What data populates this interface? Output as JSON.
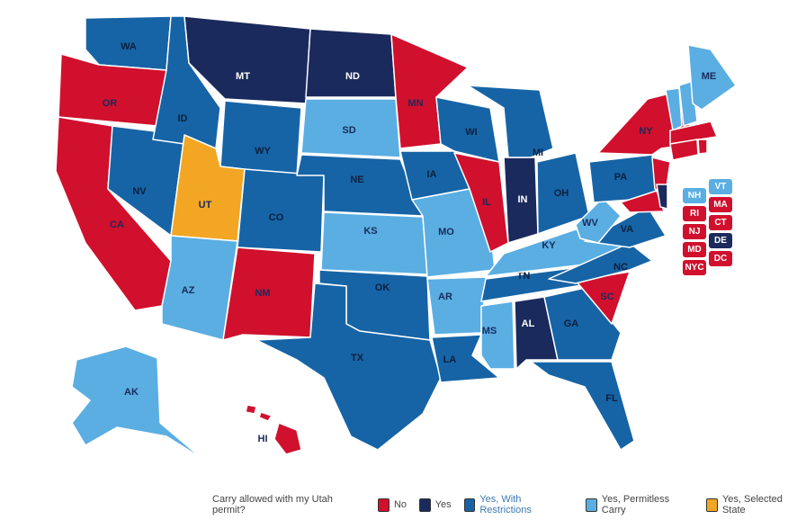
{
  "colors": {
    "no": "#d0102d",
    "yes": "#1b2a5c",
    "restrict": "#1664a6",
    "permitless": "#5aaee2",
    "selected": "#f2a623"
  },
  "states": {
    "WA": {
      "label": "WA",
      "cat": "restrict"
    },
    "OR": {
      "label": "OR",
      "cat": "no"
    },
    "CA": {
      "label": "CA",
      "cat": "no"
    },
    "NV": {
      "label": "NV",
      "cat": "restrict"
    },
    "ID": {
      "label": "ID",
      "cat": "restrict"
    },
    "MT": {
      "label": "MT",
      "cat": "yes"
    },
    "WY": {
      "label": "WY",
      "cat": "restrict"
    },
    "UT": {
      "label": "UT",
      "cat": "selected"
    },
    "AZ": {
      "label": "AZ",
      "cat": "permitless"
    },
    "CO": {
      "label": "CO",
      "cat": "restrict"
    },
    "NM": {
      "label": "NM",
      "cat": "no"
    },
    "ND": {
      "label": "ND",
      "cat": "yes"
    },
    "SD": {
      "label": "SD",
      "cat": "permitless"
    },
    "NE": {
      "label": "NE",
      "cat": "restrict"
    },
    "KS": {
      "label": "KS",
      "cat": "permitless"
    },
    "OK": {
      "label": "OK",
      "cat": "restrict"
    },
    "TX": {
      "label": "TX",
      "cat": "restrict"
    },
    "MN": {
      "label": "MN",
      "cat": "no"
    },
    "IA": {
      "label": "IA",
      "cat": "restrict"
    },
    "MO": {
      "label": "MO",
      "cat": "permitless"
    },
    "AR": {
      "label": "AR",
      "cat": "permitless"
    },
    "LA": {
      "label": "LA",
      "cat": "restrict"
    },
    "WI": {
      "label": "WI",
      "cat": "restrict"
    },
    "IL": {
      "label": "IL",
      "cat": "no"
    },
    "MS": {
      "label": "MS",
      "cat": "permitless"
    },
    "AL": {
      "label": "AL",
      "cat": "yes"
    },
    "TN": {
      "label": "TN",
      "cat": "restrict"
    },
    "KY": {
      "label": "KY",
      "cat": "permitless"
    },
    "IN": {
      "label": "IN",
      "cat": "yes"
    },
    "OH": {
      "label": "OH",
      "cat": "restrict"
    },
    "MI": {
      "label": "MI",
      "cat": "restrict"
    },
    "GA": {
      "label": "GA",
      "cat": "restrict"
    },
    "FL": {
      "label": "FL",
      "cat": "restrict"
    },
    "SC": {
      "label": "SC",
      "cat": "no"
    },
    "NC": {
      "label": "NC",
      "cat": "restrict"
    },
    "VA": {
      "label": "VA",
      "cat": "restrict"
    },
    "WV": {
      "label": "WV",
      "cat": "permitless"
    },
    "PA": {
      "label": "PA",
      "cat": "restrict"
    },
    "NY": {
      "label": "NY",
      "cat": "no"
    },
    "ME": {
      "label": "ME",
      "cat": "permitless"
    },
    "AK": {
      "label": "AK",
      "cat": "permitless"
    },
    "HI": {
      "label": "HI",
      "cat": "no"
    }
  },
  "badges": [
    {
      "label": "NH",
      "cat": "permitless"
    },
    {
      "label": "VT",
      "cat": "permitless"
    },
    {
      "label": "RI",
      "cat": "no"
    },
    {
      "label": "MA",
      "cat": "no"
    },
    {
      "label": "NJ",
      "cat": "no"
    },
    {
      "label": "CT",
      "cat": "no"
    },
    {
      "label": "MD",
      "cat": "no"
    },
    {
      "label": "DE",
      "cat": "yes"
    },
    {
      "label": "NYC",
      "cat": "no"
    },
    {
      "label": "DC",
      "cat": "no"
    }
  ],
  "legend": {
    "title": "Carry allowed with my Utah permit?",
    "items": [
      {
        "label": "No",
        "cat": "no"
      },
      {
        "label": "Yes",
        "cat": "yes"
      },
      {
        "label": "Yes, With Restrictions",
        "cat": "restrict"
      },
      {
        "label": "Yes, Permitless Carry",
        "cat": "permitless"
      },
      {
        "label": "Yes, Selected State",
        "cat": "selected"
      }
    ]
  }
}
